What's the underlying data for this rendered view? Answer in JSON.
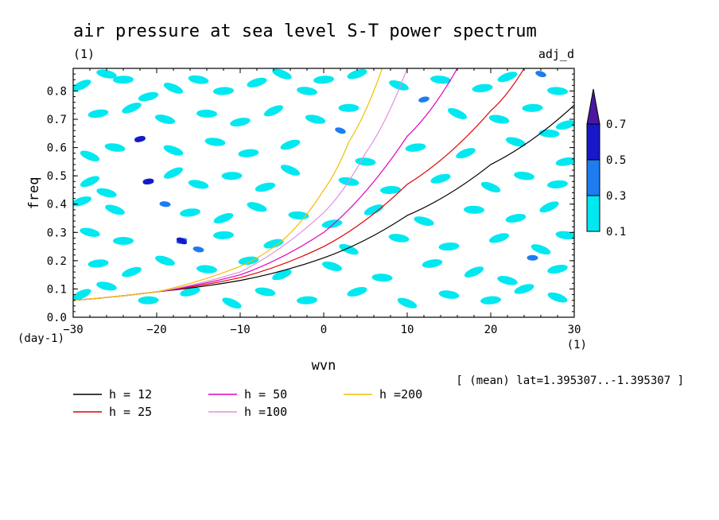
{
  "chart_data": {
    "type": "contour",
    "title": "air pressure at sea level S-T power spectrum",
    "title_units": "(1)",
    "top_right_label": "adj_d",
    "xlabel": "wvn",
    "ylabel": "freq",
    "x_units": "(1)",
    "y_units": "(day-1)",
    "xlim": [
      -30,
      30
    ],
    "ylim": [
      0,
      0.88
    ],
    "x_ticks": [
      -30,
      -20,
      -10,
      0,
      10,
      20,
      30
    ],
    "y_ticks": [
      0.0,
      0.1,
      0.2,
      0.3,
      0.4,
      0.5,
      0.6,
      0.7,
      0.8
    ],
    "y_tick_labels": [
      "0.0",
      "0.1",
      "0.2",
      "0.3",
      "0.4",
      "0.5",
      "0.6",
      "0.7",
      "0.8"
    ],
    "annotation": "[ (mean) lat=1.395307..-1.395307 ]",
    "colorbar": {
      "levels": [
        0.1,
        0.3,
        0.5,
        0.7
      ],
      "labels": [
        "0.1",
        "0.3",
        "0.5",
        "0.7"
      ],
      "colors": [
        "#00e8f0",
        "#1e7cf0",
        "#1818c8",
        "#4a18a0"
      ]
    },
    "dispersion_curves": [
      {
        "name": "h = 12",
        "h": 12,
        "color": "#000000",
        "x": [
          -30,
          -20,
          -10,
          0,
          10,
          20,
          30
        ],
        "y": [
          0.06,
          0.09,
          0.13,
          0.21,
          0.36,
          0.54,
          0.75
        ]
      },
      {
        "name": "h = 25",
        "h": 25,
        "color": "#e00000",
        "x": [
          -30,
          -20,
          -10,
          0,
          10,
          20,
          24
        ],
        "y": [
          0.06,
          0.09,
          0.14,
          0.25,
          0.47,
          0.73,
          0.88
        ]
      },
      {
        "name": "h = 50",
        "h": 50,
        "color": "#e000c0",
        "x": [
          -30,
          -20,
          -10,
          0,
          10,
          16
        ],
        "y": [
          0.06,
          0.09,
          0.15,
          0.3,
          0.64,
          0.88
        ]
      },
      {
        "name": "h =100",
        "h": 100,
        "color": "#e090e0",
        "x": [
          -30,
          -20,
          -10,
          0,
          5,
          10
        ],
        "y": [
          0.06,
          0.09,
          0.16,
          0.37,
          0.58,
          0.88
        ]
      },
      {
        "name": "h =200",
        "h": 200,
        "color": "#f0c000",
        "x": [
          -30,
          -20,
          -10,
          -5,
          0,
          3,
          7
        ],
        "y": [
          0.06,
          0.09,
          0.18,
          0.27,
          0.45,
          0.62,
          0.88
        ]
      }
    ],
    "contour_patches": [
      {
        "x": -29,
        "y": 0.82,
        "v": 0.1
      },
      {
        "x": -26,
        "y": 0.86,
        "v": 0.1
      },
      {
        "x": -24,
        "y": 0.84,
        "v": 0.1
      },
      {
        "x": -21,
        "y": 0.78,
        "v": 0.1
      },
      {
        "x": -18,
        "y": 0.81,
        "v": 0.1
      },
      {
        "x": -15,
        "y": 0.84,
        "v": 0.1
      },
      {
        "x": -12,
        "y": 0.8,
        "v": 0.1
      },
      {
        "x": -8,
        "y": 0.83,
        "v": 0.1
      },
      {
        "x": -5,
        "y": 0.86,
        "v": 0.1
      },
      {
        "x": -2,
        "y": 0.8,
        "v": 0.1
      },
      {
        "x": 0,
        "y": 0.84,
        "v": 0.1
      },
      {
        "x": 4,
        "y": 0.86,
        "v": 0.1
      },
      {
        "x": 9,
        "y": 0.82,
        "v": 0.1
      },
      {
        "x": 14,
        "y": 0.84,
        "v": 0.1
      },
      {
        "x": 19,
        "y": 0.81,
        "v": 0.1
      },
      {
        "x": 22,
        "y": 0.85,
        "v": 0.1
      },
      {
        "x": 26,
        "y": 0.86,
        "v": 0.3
      },
      {
        "x": 28,
        "y": 0.8,
        "v": 0.1
      },
      {
        "x": -27,
        "y": 0.72,
        "v": 0.1
      },
      {
        "x": -23,
        "y": 0.74,
        "v": 0.1
      },
      {
        "x": -19,
        "y": 0.7,
        "v": 0.1
      },
      {
        "x": -14,
        "y": 0.72,
        "v": 0.1
      },
      {
        "x": -10,
        "y": 0.69,
        "v": 0.1
      },
      {
        "x": -6,
        "y": 0.73,
        "v": 0.1
      },
      {
        "x": -1,
        "y": 0.7,
        "v": 0.1
      },
      {
        "x": 3,
        "y": 0.74,
        "v": 0.1
      },
      {
        "x": 12,
        "y": 0.77,
        "v": 0.3
      },
      {
        "x": 16,
        "y": 0.72,
        "v": 0.1
      },
      {
        "x": 21,
        "y": 0.7,
        "v": 0.1
      },
      {
        "x": 25,
        "y": 0.74,
        "v": 0.1
      },
      {
        "x": 29,
        "y": 0.68,
        "v": 0.1
      },
      {
        "x": -28,
        "y": 0.57,
        "v": 0.1
      },
      {
        "x": -25,
        "y": 0.6,
        "v": 0.1
      },
      {
        "x": -22,
        "y": 0.63,
        "v": 0.3
      },
      {
        "x": -22,
        "y": 0.63,
        "v": 0.5
      },
      {
        "x": -18,
        "y": 0.59,
        "v": 0.1
      },
      {
        "x": -13,
        "y": 0.62,
        "v": 0.1
      },
      {
        "x": -9,
        "y": 0.58,
        "v": 0.1
      },
      {
        "x": -4,
        "y": 0.61,
        "v": 0.1
      },
      {
        "x": 2,
        "y": 0.66,
        "v": 0.3
      },
      {
        "x": 5,
        "y": 0.55,
        "v": 0.1
      },
      {
        "x": 11,
        "y": 0.6,
        "v": 0.1
      },
      {
        "x": 17,
        "y": 0.58,
        "v": 0.1
      },
      {
        "x": 23,
        "y": 0.62,
        "v": 0.1
      },
      {
        "x": 27,
        "y": 0.65,
        "v": 0.1
      },
      {
        "x": 29,
        "y": 0.55,
        "v": 0.1
      },
      {
        "x": -28,
        "y": 0.48,
        "v": 0.1
      },
      {
        "x": -26,
        "y": 0.44,
        "v": 0.1
      },
      {
        "x": -21,
        "y": 0.48,
        "v": 0.3
      },
      {
        "x": -21,
        "y": 0.48,
        "v": 0.5
      },
      {
        "x": -18,
        "y": 0.51,
        "v": 0.1
      },
      {
        "x": -15,
        "y": 0.47,
        "v": 0.1
      },
      {
        "x": -11,
        "y": 0.5,
        "v": 0.1
      },
      {
        "x": -7,
        "y": 0.46,
        "v": 0.1
      },
      {
        "x": -4,
        "y": 0.52,
        "v": 0.1
      },
      {
        "x": 3,
        "y": 0.48,
        "v": 0.1
      },
      {
        "x": 8,
        "y": 0.45,
        "v": 0.1
      },
      {
        "x": 14,
        "y": 0.49,
        "v": 0.1
      },
      {
        "x": 20,
        "y": 0.46,
        "v": 0.1
      },
      {
        "x": 24,
        "y": 0.5,
        "v": 0.1
      },
      {
        "x": 28,
        "y": 0.47,
        "v": 0.1
      },
      {
        "x": -29,
        "y": 0.41,
        "v": 0.1
      },
      {
        "x": -25,
        "y": 0.38,
        "v": 0.1
      },
      {
        "x": -19,
        "y": 0.4,
        "v": 0.3
      },
      {
        "x": -16,
        "y": 0.37,
        "v": 0.1
      },
      {
        "x": -12,
        "y": 0.35,
        "v": 0.1
      },
      {
        "x": -8,
        "y": 0.39,
        "v": 0.1
      },
      {
        "x": -3,
        "y": 0.36,
        "v": 0.1
      },
      {
        "x": 1,
        "y": 0.33,
        "v": 0.1
      },
      {
        "x": 6,
        "y": 0.38,
        "v": 0.1
      },
      {
        "x": 12,
        "y": 0.34,
        "v": 0.1
      },
      {
        "x": 18,
        "y": 0.38,
        "v": 0.1
      },
      {
        "x": 23,
        "y": 0.35,
        "v": 0.1
      },
      {
        "x": 27,
        "y": 0.39,
        "v": 0.1
      },
      {
        "x": -28,
        "y": 0.3,
        "v": 0.1
      },
      {
        "x": -24,
        "y": 0.27,
        "v": 0.1
      },
      {
        "x": -17,
        "y": 0.27,
        "v": 0.3
      },
      {
        "x": -17,
        "y": 0.27,
        "v": 0.5
      },
      {
        "x": -15,
        "y": 0.24,
        "v": 0.3
      },
      {
        "x": -12,
        "y": 0.29,
        "v": 0.1
      },
      {
        "x": -6,
        "y": 0.26,
        "v": 0.1
      },
      {
        "x": 3,
        "y": 0.24,
        "v": 0.1
      },
      {
        "x": 9,
        "y": 0.28,
        "v": 0.1
      },
      {
        "x": 15,
        "y": 0.25,
        "v": 0.1
      },
      {
        "x": 21,
        "y": 0.28,
        "v": 0.1
      },
      {
        "x": 26,
        "y": 0.24,
        "v": 0.1
      },
      {
        "x": 29,
        "y": 0.29,
        "v": 0.1
      },
      {
        "x": -27,
        "y": 0.19,
        "v": 0.1
      },
      {
        "x": -23,
        "y": 0.16,
        "v": 0.1
      },
      {
        "x": -19,
        "y": 0.2,
        "v": 0.1
      },
      {
        "x": -14,
        "y": 0.17,
        "v": 0.1
      },
      {
        "x": -9,
        "y": 0.2,
        "v": 0.1
      },
      {
        "x": -5,
        "y": 0.15,
        "v": 0.1
      },
      {
        "x": 1,
        "y": 0.18,
        "v": 0.1
      },
      {
        "x": 7,
        "y": 0.14,
        "v": 0.1
      },
      {
        "x": 13,
        "y": 0.19,
        "v": 0.1
      },
      {
        "x": 18,
        "y": 0.16,
        "v": 0.1
      },
      {
        "x": 22,
        "y": 0.13,
        "v": 0.1
      },
      {
        "x": 25,
        "y": 0.21,
        "v": 0.3
      },
      {
        "x": 28,
        "y": 0.17,
        "v": 0.1
      },
      {
        "x": -29,
        "y": 0.08,
        "v": 0.1
      },
      {
        "x": -26,
        "y": 0.11,
        "v": 0.1
      },
      {
        "x": -21,
        "y": 0.06,
        "v": 0.1
      },
      {
        "x": -16,
        "y": 0.09,
        "v": 0.1
      },
      {
        "x": -11,
        "y": 0.05,
        "v": 0.1
      },
      {
        "x": -7,
        "y": 0.09,
        "v": 0.1
      },
      {
        "x": -2,
        "y": 0.06,
        "v": 0.1
      },
      {
        "x": 4,
        "y": 0.09,
        "v": 0.1
      },
      {
        "x": 10,
        "y": 0.05,
        "v": 0.1
      },
      {
        "x": 15,
        "y": 0.08,
        "v": 0.1
      },
      {
        "x": 20,
        "y": 0.06,
        "v": 0.1
      },
      {
        "x": 24,
        "y": 0.1,
        "v": 0.1
      },
      {
        "x": 28,
        "y": 0.07,
        "v": 0.1
      }
    ]
  }
}
